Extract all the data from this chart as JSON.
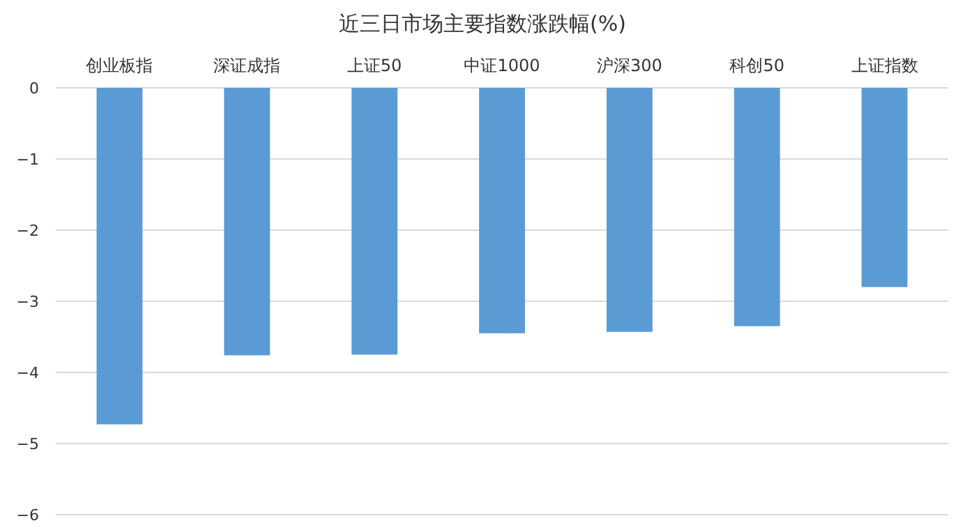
{
  "chart_data": {
    "type": "bar",
    "title": "近三日市场主要指数涨跌幅(%)",
    "categories": [
      "创业板指",
      "深证成指",
      "上证50",
      "中证1000",
      "沪深300",
      "科创50",
      "上证指数"
    ],
    "values": [
      -4.73,
      -3.76,
      -3.75,
      -3.45,
      -3.43,
      -3.35,
      -2.8
    ],
    "color": "#5b9bd5",
    "ylim": [
      -6,
      0
    ],
    "yticks": [
      0,
      -1,
      -2,
      -3,
      -4,
      -5,
      -6
    ],
    "grid": "y"
  }
}
